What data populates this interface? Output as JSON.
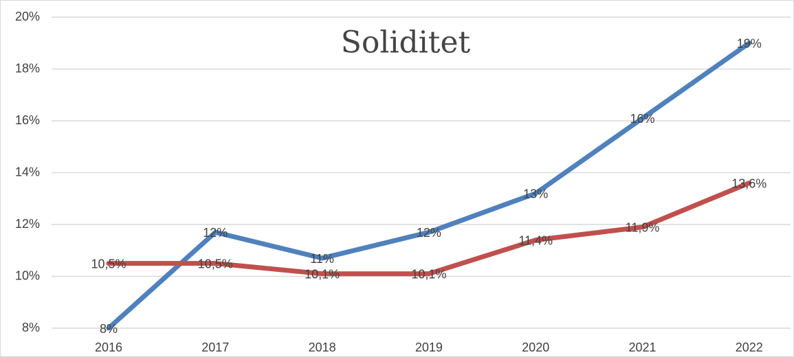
{
  "chart_data": {
    "type": "line",
    "title": "Soliditet",
    "categories": [
      "2016",
      "2017",
      "2018",
      "2019",
      "2020",
      "2021",
      "2022"
    ],
    "series": [
      {
        "color": "#4f81bd",
        "values": [
          8,
          11.7,
          10.7,
          11.7,
          13.2,
          16.1,
          19
        ],
        "value_labels": [
          "8%",
          "12%",
          "11%",
          "12%",
          "13%",
          "16%",
          "19%"
        ]
      },
      {
        "color": "#c0504d",
        "values": [
          10.5,
          10.5,
          10.1,
          10.1,
          11.4,
          11.9,
          13.6
        ],
        "value_labels": [
          "10,5%",
          "10,5%",
          "10,1%",
          "10,1%",
          "11,4%",
          "11,9%",
          "13,6%"
        ]
      }
    ],
    "ylim": [
      8,
      20
    ],
    "yticks": [
      {
        "value": 8,
        "label": "8%"
      },
      {
        "value": 10,
        "label": "10%"
      },
      {
        "value": 12,
        "label": "12%"
      },
      {
        "value": 14,
        "label": "14%"
      },
      {
        "value": 16,
        "label": "16%"
      },
      {
        "value": 18,
        "label": "18%"
      },
      {
        "value": 20,
        "label": "20%"
      }
    ],
    "grid": true
  }
}
